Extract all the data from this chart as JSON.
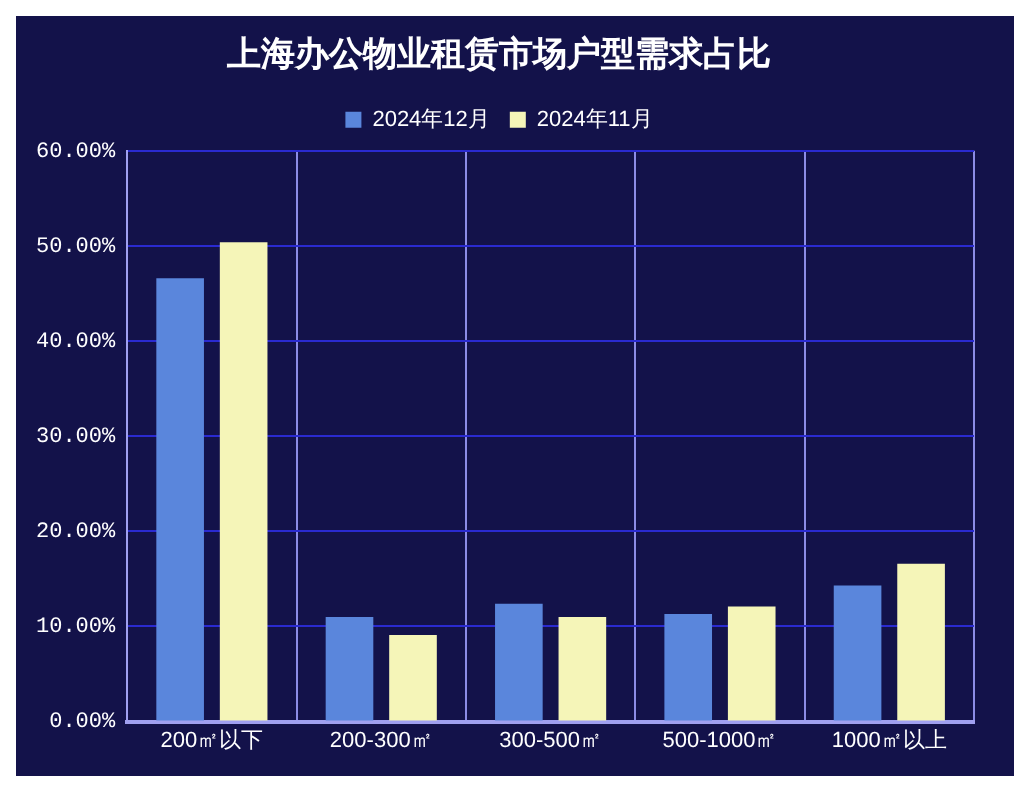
{
  "chart_data": {
    "type": "bar",
    "title": "上海办公物业租赁市场户型需求占比",
    "categories": [
      "200㎡以下",
      "200-300㎡",
      "300-500㎡",
      "500-1000㎡",
      "1000㎡以上"
    ],
    "series": [
      {
        "name": "2024年12月",
        "color": "#5a86dc",
        "values": [
          46.6,
          11,
          12.4,
          11.3,
          14.3
        ]
      },
      {
        "name": "2024年11月",
        "color": "#f5f5b8",
        "values": [
          50.4,
          9.1,
          11,
          12.1,
          16.6
        ]
      }
    ],
    "ylim": [
      0,
      60
    ],
    "yticks": [
      {
        "value": 0,
        "label": "0.00%"
      },
      {
        "value": 10,
        "label": "10.00%"
      },
      {
        "value": 20,
        "label": "20.00%"
      },
      {
        "value": 30,
        "label": "30.00%"
      },
      {
        "value": 40,
        "label": "40.00%"
      },
      {
        "value": 50,
        "label": "50.00%"
      },
      {
        "value": 60,
        "label": "60.00%"
      }
    ],
    "grid": true,
    "legend": "top"
  }
}
